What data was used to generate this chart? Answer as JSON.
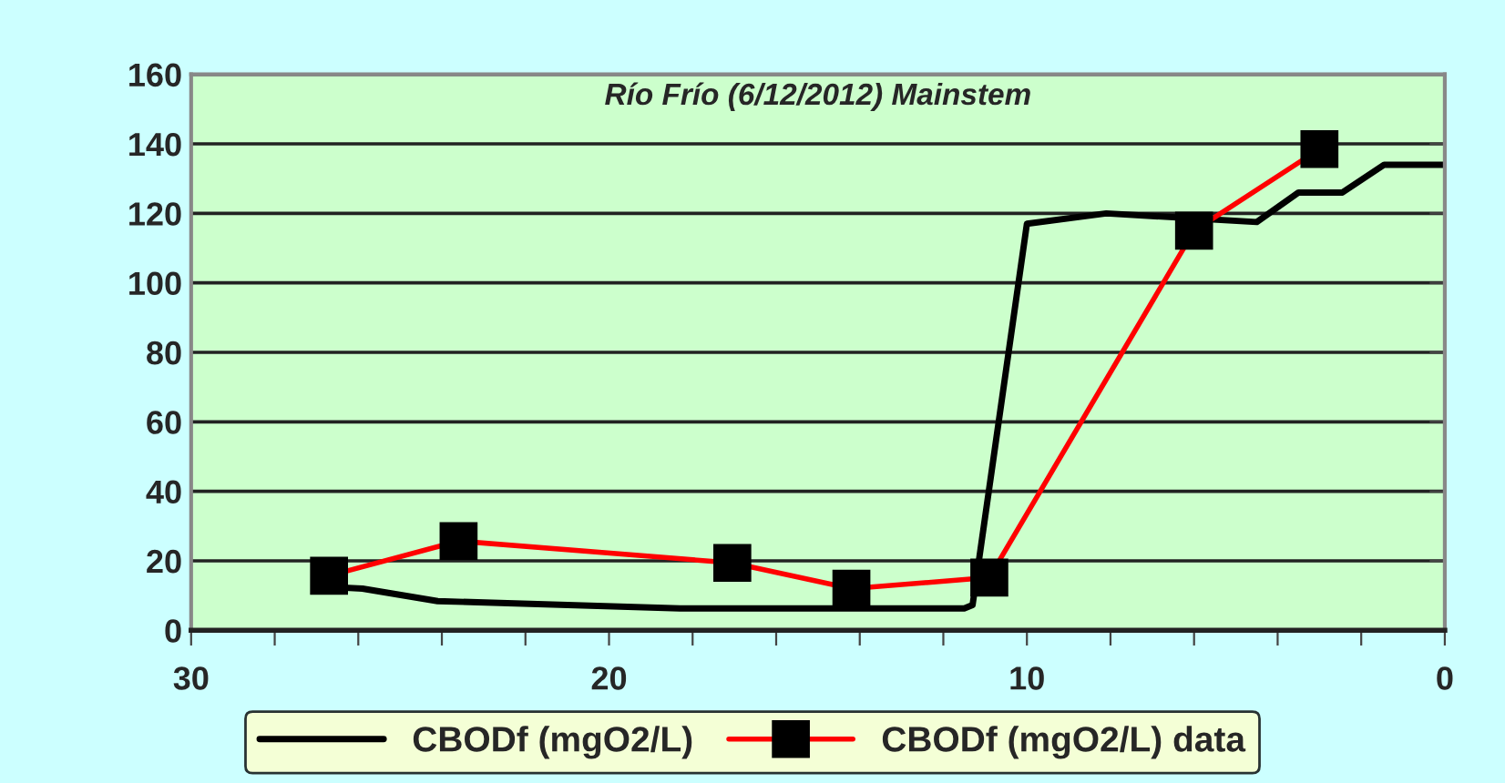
{
  "chart_data": {
    "type": "line",
    "title": "Río Frío (6/12/2012) Mainstem",
    "xlim": [
      30,
      0
    ],
    "ylim": [
      0,
      160
    ],
    "xticks": [
      30,
      {
        "value": 28,
        "label": null
      },
      {
        "value": 26,
        "label": null
      },
      {
        "value": 24,
        "label": null
      },
      {
        "value": 22,
        "label": null
      },
      20,
      {
        "value": 18,
        "label": null
      },
      {
        "value": 16,
        "label": null
      },
      {
        "value": 14,
        "label": null
      },
      {
        "value": 12,
        "label": null
      },
      10,
      {
        "value": 8,
        "label": null
      },
      {
        "value": 6,
        "label": null
      },
      {
        "value": 4,
        "label": null
      },
      {
        "value": 2,
        "label": null
      },
      0
    ],
    "yticks": [
      0,
      20,
      40,
      60,
      80,
      100,
      120,
      140,
      160
    ],
    "grid": "y",
    "legend": "bottom",
    "line_style": "solid",
    "series": [
      {
        "name": "CBODf (mgO2/L)",
        "color": "#000000",
        "marker": "none",
        "x": [
          26.7,
          25.9,
          24.1,
          18.3,
          11.5,
          11.3,
          10.0,
          8.1,
          4.5,
          3.5,
          2.45,
          1.45,
          0
        ],
        "values": [
          12.5,
          12,
          8.4,
          6.3,
          6.3,
          7.3,
          117,
          120,
          117.5,
          126,
          126,
          134,
          134
        ]
      },
      {
        "name": "CBODf (mgO2/L) data",
        "color": "#ff0000",
        "marker": "square",
        "x": [
          26.7,
          23.6,
          17.05,
          14.2,
          10.9,
          6.0,
          3.0
        ],
        "values": [
          15.7,
          25.7,
          19.4,
          12,
          15.2,
          115,
          138.5
        ]
      }
    ]
  }
}
